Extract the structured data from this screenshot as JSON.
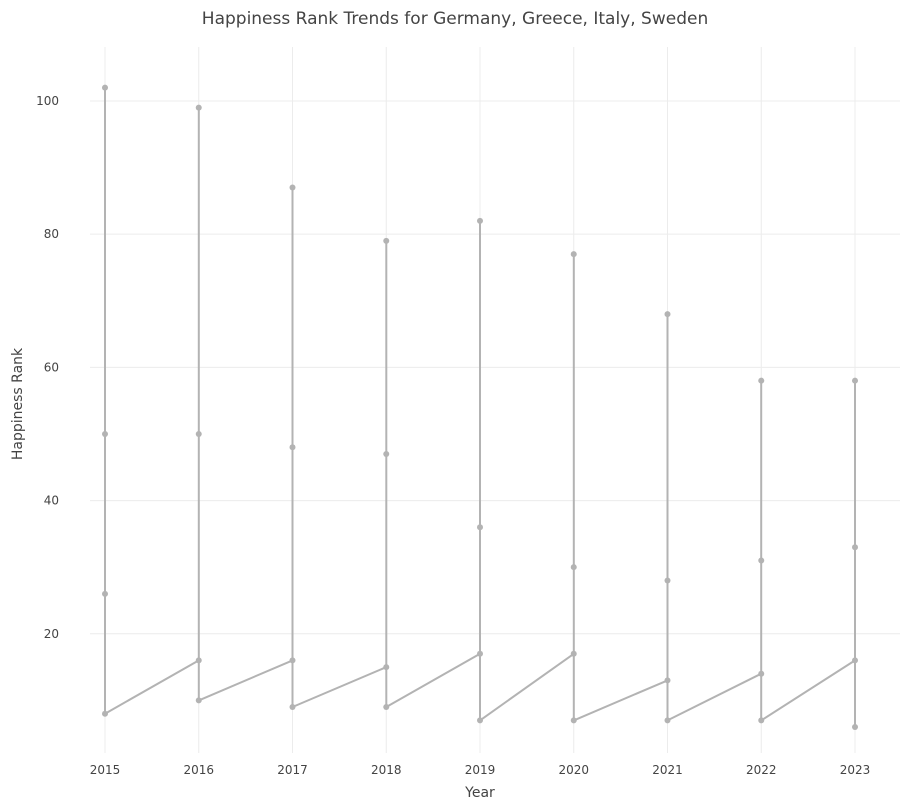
{
  "chart_data": {
    "type": "line",
    "title": "Happiness Rank Trends for Germany, Greece, Italy, Sweden",
    "xlabel": "Year",
    "ylabel": "Happiness Rank",
    "x": [
      2015,
      2015,
      2015,
      2015,
      2016,
      2016,
      2016,
      2016,
      2017,
      2017,
      2017,
      2017,
      2018,
      2018,
      2018,
      2018,
      2019,
      2019,
      2019,
      2019,
      2020,
      2020,
      2020,
      2020,
      2021,
      2021,
      2021,
      2021,
      2022,
      2022,
      2022,
      2022,
      2023,
      2023,
      2023,
      2023
    ],
    "y": [
      102,
      50,
      26,
      8,
      16,
      99,
      50,
      10,
      16,
      87,
      48,
      9,
      15,
      79,
      47,
      9,
      17,
      82,
      36,
      7,
      17,
      77,
      30,
      7,
      13,
      68,
      28,
      7,
      14,
      58,
      31,
      7,
      16,
      58,
      33,
      6
    ],
    "xticks": [
      "2015",
      "2016",
      "2017",
      "2018",
      "2019",
      "2020",
      "2021",
      "2022",
      "2023"
    ],
    "yticks": [
      "20",
      "40",
      "60",
      "80",
      "100"
    ],
    "xlim": [
      2014.84,
      2023.48
    ],
    "ylim": [
      2.1,
      108.1
    ],
    "grid": true,
    "line_color": "#b3b3b3"
  }
}
